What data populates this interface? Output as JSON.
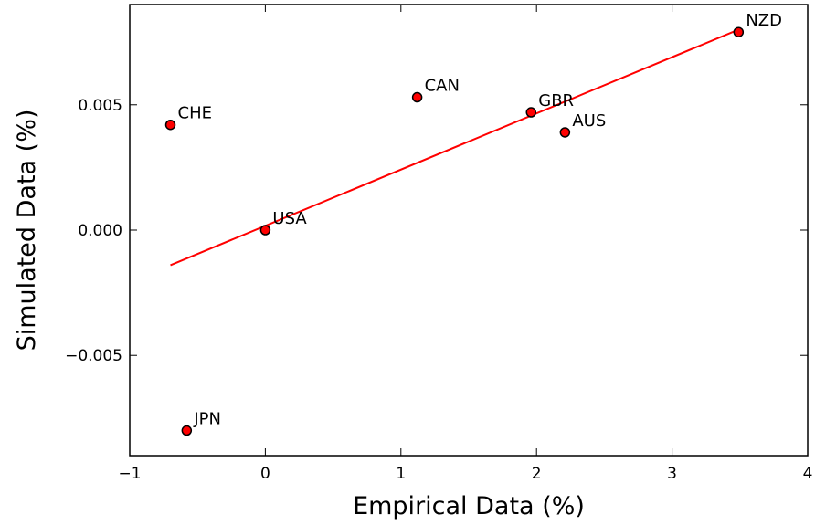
{
  "chart_data": {
    "type": "scatter",
    "title": "",
    "xlabel": "Empirical Data (%)",
    "ylabel": "Simulated Data (%)",
    "xlim": [
      -1,
      4
    ],
    "ylim": [
      -0.009,
      0.009
    ],
    "xticks": [
      -1,
      0,
      1,
      2,
      3,
      4
    ],
    "xtick_labels": [
      "−1",
      "0",
      "1",
      "2",
      "3",
      "4"
    ],
    "yticks": [
      -0.005,
      0.0,
      0.005
    ],
    "ytick_labels": [
      "−0.005",
      "0.000",
      "0.005"
    ],
    "grid": false,
    "colors": {
      "points": "#ff0000",
      "point_edge": "#000000",
      "fit_line": "#ff0000"
    },
    "points": [
      {
        "label": "CHE",
        "x": -0.7,
        "y": 0.0042
      },
      {
        "label": "JPN",
        "x": -0.58,
        "y": -0.008
      },
      {
        "label": "USA",
        "x": 0.0,
        "y": 0.0
      },
      {
        "label": "CAN",
        "x": 1.12,
        "y": 0.0053
      },
      {
        "label": "GBR",
        "x": 1.96,
        "y": 0.0047
      },
      {
        "label": "AUS",
        "x": 2.21,
        "y": 0.0039
      },
      {
        "label": "NZD",
        "x": 3.49,
        "y": 0.0079
      }
    ],
    "fit_line": {
      "x": [
        -0.7,
        3.49
      ],
      "y": [
        -0.0014,
        0.008
      ]
    }
  }
}
